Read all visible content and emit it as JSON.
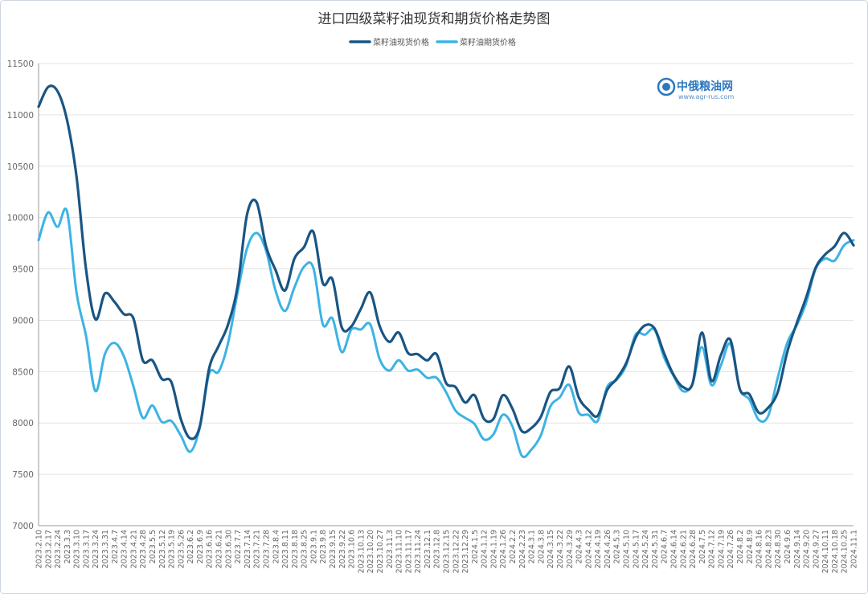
{
  "chart_data": {
    "type": "line",
    "title": "进口四级菜籽油现货和期货价格走势图",
    "xlabel": "",
    "ylabel": "",
    "ylim": [
      7000,
      11500
    ],
    "yticks": [
      7000,
      7500,
      8000,
      8500,
      9000,
      9500,
      10000,
      10500,
      11000,
      11500
    ],
    "grid": true,
    "legend_position": "top-center",
    "x_tick_labels": [
      "2023.2.10",
      "2023.2.17",
      "2023.2.24",
      "2023.3.3",
      "2023.3.10",
      "2023.3.17",
      "2023.3.24",
      "2023.3.31",
      "2023.4.7",
      "2023.4.14",
      "2023.4.21",
      "2023.4.28",
      "2023.5.5",
      "2023.5.12",
      "2023.5.19",
      "2023.5.26",
      "2023.6.2",
      "2023.6.9",
      "2023.6.16",
      "2023.6.21",
      "2023.6.30",
      "2023.7.7",
      "2023.7.14",
      "2023.7.21",
      "2023.7.28",
      "2023.8.4",
      "2023.8.11",
      "2023.8.18",
      "2023.8.25",
      "2023.9.1",
      "2023.9.8",
      "2023.9.15",
      "2023.9.22",
      "2023.10.6",
      "2023.10.13",
      "2023.10.20",
      "2023.10.27",
      "2023.11.3",
      "2023.11.10",
      "2023.11.17",
      "2023.11.24",
      "2023.12.1",
      "2023.12.8",
      "2023.12.15",
      "2023.12.22",
      "2023.12.29",
      "2024.1.5",
      "2024.1.12",
      "2024.1.19",
      "2024.1.26",
      "2024.2.2",
      "2024.2.23",
      "2024.3.1",
      "2024.3.8",
      "2024.3.15",
      "2024.3.22",
      "2024.3.29",
      "2024.4.3",
      "2024.4.12",
      "2024.4.19",
      "2024.4.26",
      "2024.5.3",
      "2024.5.10",
      "2024.5.17",
      "2024.5.24",
      "2024.5.31",
      "2024.6.7",
      "2024.6.14",
      "2024.6.21",
      "2024.6.28",
      "2024.7.5",
      "2024.7.12",
      "2024.7.19",
      "2024.7.26",
      "2024.8.2",
      "2024.8.9",
      "2024.8.16",
      "2024.8.23",
      "2024.8.30",
      "2024.9.6",
      "2024.9.14",
      "2024.9.20",
      "2024.9.27",
      "2024.10.11",
      "2024.10.18",
      "2024.10.25",
      "2024.11.1"
    ],
    "series": [
      {
        "name": "菜籽油现货价格",
        "color": "#1a5583",
        "values": [
          11080,
          11270,
          11230,
          10950,
          10400,
          9500,
          9010,
          9260,
          9180,
          9060,
          9020,
          8610,
          8610,
          8430,
          8400,
          8040,
          7850,
          7960,
          8530,
          8750,
          8960,
          9330,
          10030,
          10150,
          9720,
          9490,
          9290,
          9600,
          9710,
          9860,
          9360,
          9400,
          8930,
          8940,
          9110,
          9270,
          8940,
          8790,
          8880,
          8680,
          8670,
          8610,
          8670,
          8390,
          8350,
          8200,
          8270,
          8040,
          8040,
          8270,
          8140,
          7920,
          7950,
          8060,
          8300,
          8340,
          8550,
          8250,
          8130,
          8070,
          8320,
          8430,
          8580,
          8830,
          8950,
          8920,
          8680,
          8470,
          8350,
          8380,
          8880,
          8410,
          8660,
          8810,
          8330,
          8280,
          8100,
          8150,
          8300,
          8690,
          8970,
          9220,
          9510,
          9640,
          9720,
          9850,
          9730
        ]
      },
      {
        "name": "菜籽油期货价格",
        "color": "#3db3e3",
        "values": [
          9780,
          10050,
          9910,
          10060,
          9270,
          8850,
          8310,
          8670,
          8780,
          8650,
          8360,
          8050,
          8170,
          8010,
          8020,
          7880,
          7720,
          7950,
          8480,
          8500,
          8780,
          9270,
          9700,
          9850,
          9680,
          9290,
          9090,
          9320,
          9520,
          9510,
          8960,
          9020,
          8690,
          8910,
          8910,
          8960,
          8620,
          8510,
          8610,
          8510,
          8520,
          8440,
          8440,
          8300,
          8120,
          8050,
          7990,
          7840,
          7890,
          8080,
          7970,
          7680,
          7740,
          7880,
          8160,
          8250,
          8370,
          8100,
          8080,
          8020,
          8350,
          8420,
          8560,
          8860,
          8860,
          8910,
          8640,
          8460,
          8310,
          8380,
          8740,
          8370,
          8560,
          8770,
          8330,
          8230,
          8030,
          8070,
          8440,
          8780,
          8950,
          9170,
          9500,
          9600,
          9580,
          9730,
          9780
        ]
      }
    ],
    "watermark": {
      "name": "中俄粮油网",
      "url": "www.agr-rus.com"
    }
  }
}
